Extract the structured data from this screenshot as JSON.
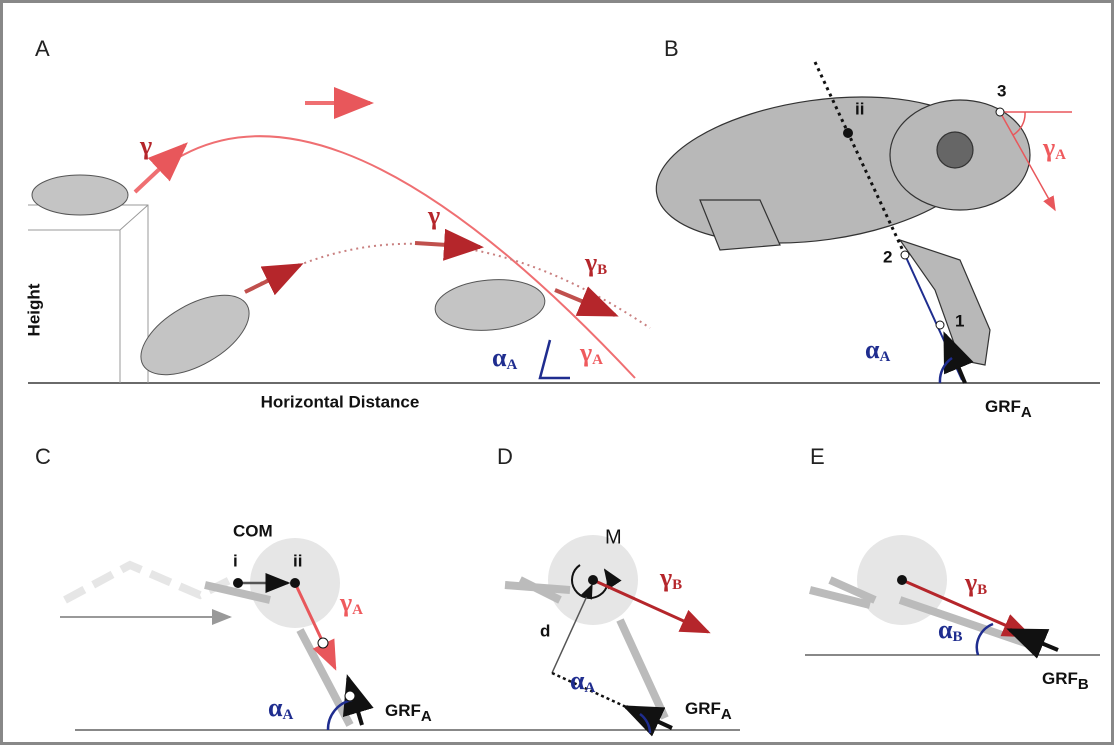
{
  "panel_a": {
    "label": "A",
    "y_axis": "Height",
    "x_axis": "Horizontal Distance",
    "gamma_1": "γ",
    "gamma_2": "γ",
    "gamma_b": {
      "symbol": "γ",
      "sub": "B"
    },
    "gamma_a": {
      "symbol": "γ",
      "sub": "A"
    },
    "alpha_a": {
      "symbol": "α",
      "sub": "A"
    }
  },
  "panel_b": {
    "label": "B",
    "point_ii": "ii",
    "point_3": "3",
    "point_2": "2",
    "point_1": "1",
    "gamma_a": {
      "symbol": "γ",
      "sub": "A"
    },
    "alpha_a": {
      "symbol": "α",
      "sub": "A"
    },
    "grf_a": {
      "symbol": "GRF",
      "sub": "A"
    }
  },
  "panel_c": {
    "label": "C",
    "com": "COM",
    "point_i": "i",
    "point_ii": "ii",
    "gamma_a": {
      "symbol": "γ",
      "sub": "A"
    },
    "alpha_a": {
      "symbol": "α",
      "sub": "A"
    },
    "grf_a": {
      "symbol": "GRF",
      "sub": "A"
    }
  },
  "panel_d": {
    "label": "D",
    "moment": "M",
    "lever": "d",
    "gamma_b": {
      "symbol": "γ",
      "sub": "B"
    },
    "alpha_a": {
      "symbol": "α",
      "sub": "A"
    },
    "grf_a": {
      "symbol": "GRF",
      "sub": "A"
    }
  },
  "panel_e": {
    "label": "E",
    "gamma_b": {
      "symbol": "γ",
      "sub": "B"
    },
    "alpha_b": {
      "symbol": "α",
      "sub": "B"
    },
    "grf_b": {
      "symbol": "GRF",
      "sub": "B"
    }
  }
}
